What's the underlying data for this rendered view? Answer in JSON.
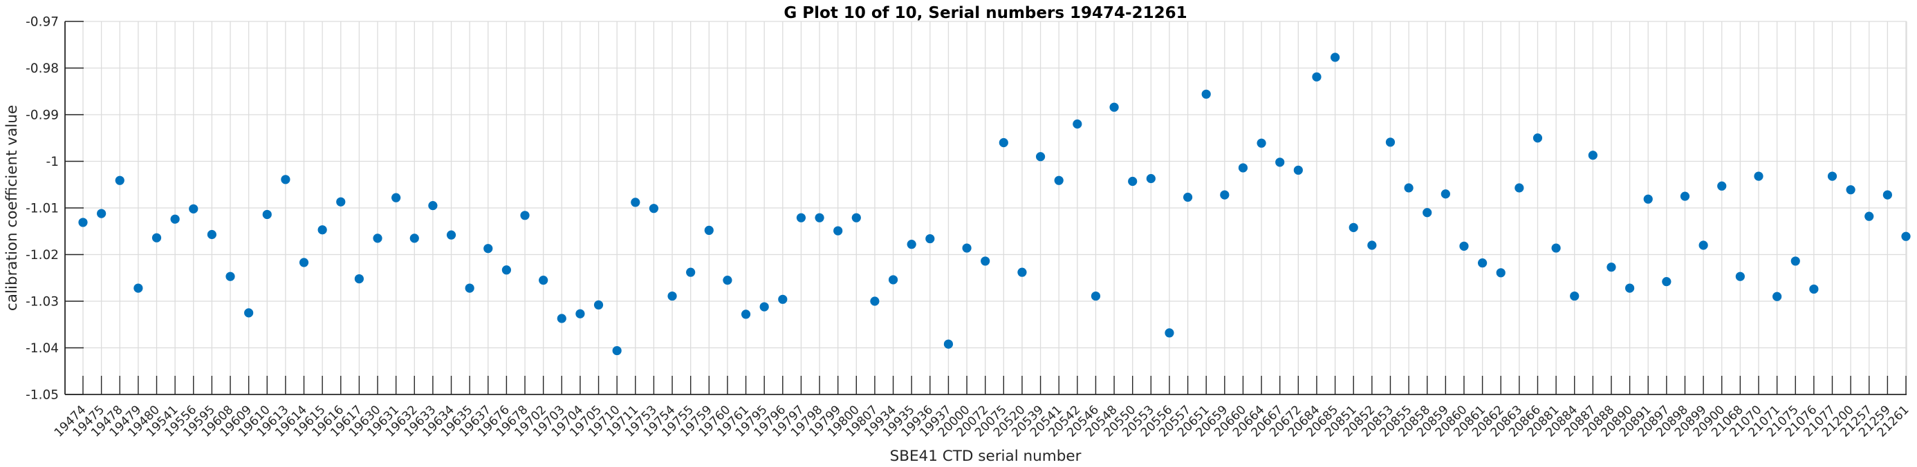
{
  "chart_data": {
    "type": "scatter",
    "title": "G Plot 10 of 10, Serial numbers 19474-21261",
    "xlabel": "SBE41 CTD serial number",
    "ylabel": "calibration coefficient value",
    "ylim": [
      -1.05,
      -0.97
    ],
    "yticks": [
      -0.97,
      -0.98,
      -0.99,
      -1.0,
      -1.01,
      -1.02,
      -1.03,
      -1.04,
      -1.05
    ],
    "ytick_labels": [
      "-0.97",
      "-0.98",
      "-0.99",
      "-1",
      "-1.01",
      "-1.02",
      "-1.03",
      "-1.04",
      "-1.05"
    ],
    "grid": true,
    "legend": "none",
    "marker": "filled-circle",
    "colors": {
      "marker": "#0072bd",
      "grid": "#dcdcdc",
      "axis": "#262626",
      "title": "#000000"
    },
    "categories": [
      "19474",
      "19475",
      "19478",
      "19479",
      "19480",
      "19541",
      "19556",
      "19595",
      "19608",
      "19609",
      "19610",
      "19613",
      "19614",
      "19615",
      "19616",
      "19617",
      "19630",
      "19631",
      "19632",
      "19633",
      "19634",
      "19635",
      "19637",
      "19676",
      "19678",
      "19702",
      "19703",
      "19704",
      "19705",
      "19710",
      "19711",
      "19753",
      "19754",
      "19755",
      "19759",
      "19760",
      "19761",
      "19795",
      "19796",
      "19797",
      "19798",
      "19799",
      "19800",
      "19807",
      "19934",
      "19935",
      "19936",
      "19937",
      "20000",
      "20072",
      "20075",
      "20520",
      "20539",
      "20541",
      "20542",
      "20546",
      "20548",
      "20550",
      "20553",
      "20556",
      "20557",
      "20651",
      "20659",
      "20660",
      "20664",
      "20667",
      "20672",
      "20684",
      "20685",
      "20851",
      "20852",
      "20853",
      "20855",
      "20858",
      "20859",
      "20860",
      "20861",
      "20862",
      "20863",
      "20866",
      "20881",
      "20884",
      "20887",
      "20888",
      "20890",
      "20891",
      "20897",
      "20898",
      "20899",
      "20900",
      "21068",
      "21070",
      "21071",
      "21075",
      "21076",
      "21077",
      "21200",
      "21257",
      "21259",
      "21261"
    ],
    "values": [
      -1.0131,
      -1.0112,
      -1.0041,
      -1.0272,
      -1.0164,
      -1.0124,
      -1.0102,
      -1.0157,
      -1.0247,
      -1.0325,
      -1.0114,
      -1.0039,
      -1.0217,
      -1.0147,
      -1.0087,
      -1.0252,
      -1.0165,
      -1.0078,
      -1.0165,
      -1.0095,
      -1.0158,
      -1.0272,
      -1.0187,
      -1.0233,
      -1.0116,
      -1.0255,
      -1.0337,
      -1.0327,
      -1.0308,
      -1.0406,
      -1.0088,
      -1.0101,
      -1.0289,
      -1.0238,
      -1.0148,
      -1.0255,
      -1.0328,
      -1.0312,
      -1.0296,
      -1.0121,
      -1.0121,
      -1.0149,
      -1.0121,
      -1.03,
      -1.0254,
      -1.0178,
      -1.0166,
      -1.0392,
      -1.0186,
      -1.0214,
      -0.996,
      -1.0238,
      -0.999,
      -1.0041,
      -0.992,
      -1.0289,
      -0.9884,
      -1.0043,
      -1.0037,
      -1.0368,
      -1.0077,
      -0.9856,
      -1.0072,
      -1.0014,
      -0.9961,
      -1.0002,
      -1.0019,
      -0.9819,
      -0.9777,
      -1.0142,
      -1.018,
      -0.9959,
      -1.0057,
      -1.011,
      -1.007,
      -1.0182,
      -1.0218,
      -1.0239,
      -1.0057,
      -0.995,
      -1.0186,
      -1.0289,
      -0.9987,
      -1.0227,
      -1.0272,
      -1.0081,
      -1.0258,
      -1.0075,
      -1.018,
      -1.0053,
      -1.0247,
      -1.0032,
      -1.029,
      -1.0214,
      -1.0274,
      -1.0032,
      -1.0061,
      -1.0118,
      -1.0072,
      -1.0161
    ]
  }
}
